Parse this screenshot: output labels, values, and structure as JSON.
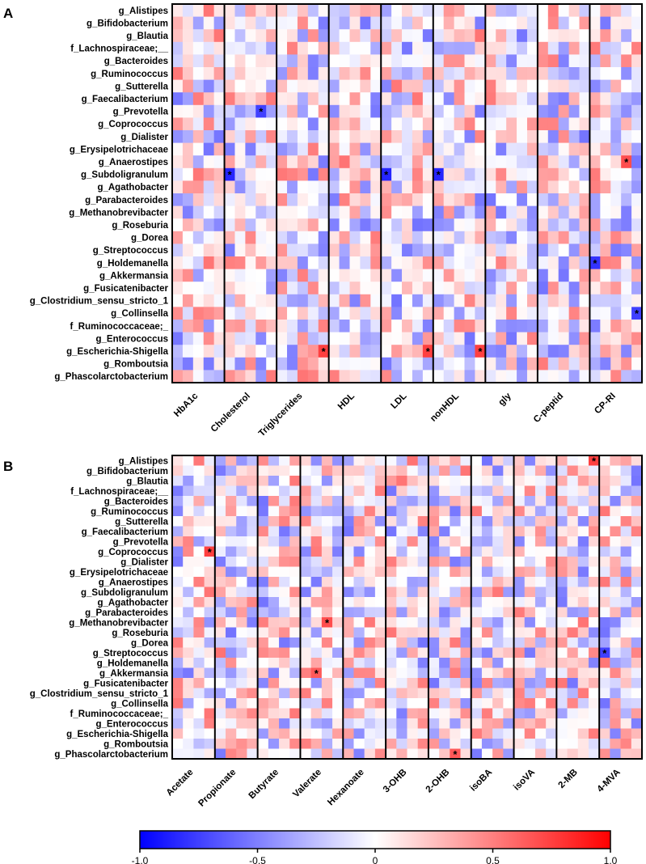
{
  "panels": [
    {
      "letter": "A",
      "rows": [
        "g_Alistipes",
        "g_Bifidobacterium",
        "g_Blautia",
        "f_Lachnospiraceae;__",
        "g_Bacteroides",
        "g_Ruminococcus",
        "g_Sutterella",
        "g_Faecalibacterium",
        "g_Prevotella",
        "g_Coprococcus",
        "g_Dialister",
        "g_Erysipelotrichaceae",
        "g_Anaerostipes",
        "g_Subdoligranulum",
        "g_Agathobacter",
        "g_Parabacteroides",
        "g_Methanobrevibacter",
        "g_Roseburia",
        "g_Dorea",
        "g_Streptococcus",
        "g_Holdemanella",
        "g_Akkermansia",
        "g_Fusicatenibacter",
        "g_Clostridium_sensu_stricto_1",
        "g_Collinsella",
        "f_Ruminococcaceae;_",
        "g_Enterococcus",
        "g_Escherichia-Shigella",
        "g_Romboutsia",
        "g_Phascolarctobacterium"
      ],
      "groups": [
        "HbA1c",
        "Cholesterol",
        "Triglycerides",
        "HDL",
        "LDL",
        "nonHDL",
        "gly",
        "C-peptid",
        "CP-RI"
      ],
      "significant": [
        {
          "row": "g_Prevotella",
          "group": "Cholesterol",
          "sub": 3
        },
        {
          "row": "g_Subdoligranulum",
          "group": "Cholesterol",
          "sub": 0
        },
        {
          "row": "g_Subdoligranulum",
          "group": "LDL",
          "sub": 0
        },
        {
          "row": "g_Subdoligranulum",
          "group": "nonHDL",
          "sub": 0
        },
        {
          "row": "g_Anaerostipes",
          "group": "CP-RI",
          "sub": 3
        },
        {
          "row": "g_Holdemanella",
          "group": "CP-RI",
          "sub": 0
        },
        {
          "row": "g_Collinsella",
          "group": "CP-RI",
          "sub": 4
        },
        {
          "row": "g_Escherichia-Shigella",
          "group": "Triglycerides",
          "sub": 4
        },
        {
          "row": "g_Escherichia-Shigella",
          "group": "LDL",
          "sub": 4
        },
        {
          "row": "g_Escherichia-Shigella",
          "group": "nonHDL",
          "sub": 4
        }
      ]
    },
    {
      "letter": "B",
      "rows": [
        "g_Alistipes",
        "g_Bifidobacterium",
        "g_Blautia",
        "f_Lachnospiraceae;__",
        "g_Bacteroides",
        "g_Ruminococcus",
        "g_Sutterella",
        "g_Faecalibacterium",
        "g_Prevotella",
        "g_Coprococcus",
        "g_Dialister",
        "g_Erysipelotrichaceae",
        "g_Anaerostipes",
        "g_Subdoligranulum",
        "g_Agathobacter",
        "g_Parabacteroides",
        "g_Methanobrevibacter",
        "g_Roseburia",
        "g_Dorea",
        "g_Streptococcus",
        "g_Holdemanella",
        "g_Akkermansia",
        "g_Fusicatenibacter",
        "g_Clostridium_sensu_stricto_1",
        "g_Collinsella",
        "f_Ruminococcaceae;_",
        "g_Enterococcus",
        "g_Escherichia-Shigella",
        "g_Romboutsia",
        "g_Phascolarctobacterium"
      ],
      "groups": [
        "Acetate",
        "Propionate",
        "Butyrate",
        "Valerate",
        "Hexanoate",
        "3-OHB",
        "2-OHB",
        "isoBA",
        "isoVA",
        "2-MB",
        "4-MVA"
      ],
      "significant": [
        {
          "row": "g_Alistipes",
          "group": "2-MB",
          "sub": 3
        },
        {
          "row": "g_Coprococcus",
          "group": "Acetate",
          "sub": 3
        },
        {
          "row": "g_Methanobrevibacter",
          "group": "Valerate",
          "sub": 2
        },
        {
          "row": "g_Akkermansia",
          "group": "Valerate",
          "sub": 1
        },
        {
          "row": "g_Streptococcus",
          "group": "4-MVA",
          "sub": 0
        },
        {
          "row": "g_Phascolarctobacterium",
          "group": "2-OHB",
          "sub": 2
        }
      ]
    }
  ],
  "chart_data": [
    {
      "type": "heatmap",
      "panel": "A",
      "title": "",
      "rows": [
        "g_Alistipes",
        "g_Bifidobacterium",
        "g_Blautia",
        "f_Lachnospiraceae;__",
        "g_Bacteroides",
        "g_Ruminococcus",
        "g_Sutterella",
        "g_Faecalibacterium",
        "g_Prevotella",
        "g_Coprococcus",
        "g_Dialister",
        "g_Erysipelotrichaceae",
        "g_Anaerostipes",
        "g_Subdoligranulum",
        "g_Agathobacter",
        "g_Parabacteroides",
        "g_Methanobrevibacter",
        "g_Roseburia",
        "g_Dorea",
        "g_Streptococcus",
        "g_Holdemanella",
        "g_Akkermansia",
        "g_Fusicatenibacter",
        "g_Clostridium_sensu_stricto_1",
        "g_Collinsella",
        "f_Ruminococcaceae;_",
        "g_Enterococcus",
        "g_Escherichia-Shigella",
        "g_Romboutsia",
        "g_Phascolarctobacterium"
      ],
      "column_groups": [
        "HbA1c",
        "Cholesterol",
        "Triglycerides",
        "HDL",
        "LDL",
        "nonHDL",
        "gly",
        "C-peptid",
        "CP-RI"
      ],
      "columns_per_group": 5,
      "notable_values": [
        {
          "row": "g_Prevotella",
          "group": "Cholesterol",
          "sub": 3,
          "value": -0.75,
          "significant": true
        },
        {
          "row": "g_Subdoligranulum",
          "group": "Cholesterol",
          "sub": 0,
          "value": -0.85,
          "significant": true
        },
        {
          "row": "g_Subdoligranulum",
          "group": "LDL",
          "sub": 0,
          "value": -0.85,
          "significant": true
        },
        {
          "row": "g_Subdoligranulum",
          "group": "nonHDL",
          "sub": 0,
          "value": -0.85,
          "significant": true
        },
        {
          "row": "g_Anaerostipes",
          "group": "CP-RI",
          "sub": 3,
          "value": 0.7,
          "significant": true
        },
        {
          "row": "g_Holdemanella",
          "group": "CP-RI",
          "sub": 0,
          "value": -0.8,
          "significant": true
        },
        {
          "row": "g_Collinsella",
          "group": "CP-RI",
          "sub": 4,
          "value": -0.75,
          "significant": true
        },
        {
          "row": "g_Escherichia-Shigella",
          "group": "Triglycerides",
          "sub": 4,
          "value": 0.75,
          "significant": true
        },
        {
          "row": "g_Escherichia-Shigella",
          "group": "LDL",
          "sub": 4,
          "value": 0.75,
          "significant": true
        },
        {
          "row": "g_Escherichia-Shigella",
          "group": "nonHDL",
          "sub": 4,
          "value": 0.75,
          "significant": true
        }
      ],
      "value_range": [
        -1.0,
        1.0
      ]
    },
    {
      "type": "heatmap",
      "panel": "B",
      "title": "",
      "rows": [
        "g_Alistipes",
        "g_Bifidobacterium",
        "g_Blautia",
        "f_Lachnospiraceae;__",
        "g_Bacteroides",
        "g_Ruminococcus",
        "g_Sutterella",
        "g_Faecalibacterium",
        "g_Prevotella",
        "g_Coprococcus",
        "g_Dialister",
        "g_Erysipelotrichaceae",
        "g_Anaerostipes",
        "g_Subdoligranulum",
        "g_Agathobacter",
        "g_Parabacteroides",
        "g_Methanobrevibacter",
        "g_Roseburia",
        "g_Dorea",
        "g_Streptococcus",
        "g_Holdemanella",
        "g_Akkermansia",
        "g_Fusicatenibacter",
        "g_Clostridium_sensu_stricto_1",
        "g_Collinsella",
        "f_Ruminococcaceae;_",
        "g_Enterococcus",
        "g_Escherichia-Shigella",
        "g_Romboutsia",
        "g_Phascolarctobacterium"
      ],
      "column_groups": [
        "Acetate",
        "Propionate",
        "Butyrate",
        "Valerate",
        "Hexanoate",
        "3-OHB",
        "2-OHB",
        "isoBA",
        "isoVA",
        "2-MB",
        "4-MVA"
      ],
      "columns_per_group": 4,
      "notable_values": [
        {
          "row": "g_Alistipes",
          "group": "2-MB",
          "sub": 3,
          "value": 0.75,
          "significant": true
        },
        {
          "row": "g_Coprococcus",
          "group": "Acetate",
          "sub": 3,
          "value": 0.75,
          "significant": true
        },
        {
          "row": "g_Methanobrevibacter",
          "group": "Valerate",
          "sub": 2,
          "value": 0.7,
          "significant": true
        },
        {
          "row": "g_Akkermansia",
          "group": "Valerate",
          "sub": 1,
          "value": 0.65,
          "significant": true
        },
        {
          "row": "g_Streptococcus",
          "group": "4-MVA",
          "sub": 0,
          "value": -0.75,
          "significant": true
        },
        {
          "row": "g_Phascolarctobacterium",
          "group": "2-OHB",
          "sub": 2,
          "value": 0.65,
          "significant": true
        }
      ],
      "value_range": [
        -1.0,
        1.0
      ]
    }
  ],
  "colorbar": {
    "ticks": [
      "-1.0",
      "-0.5",
      "0",
      "0.5",
      "1.0"
    ],
    "low_color": "#0000ff",
    "mid_color": "#ffffff",
    "high_color": "#ff0000"
  },
  "significance_marker": "*"
}
